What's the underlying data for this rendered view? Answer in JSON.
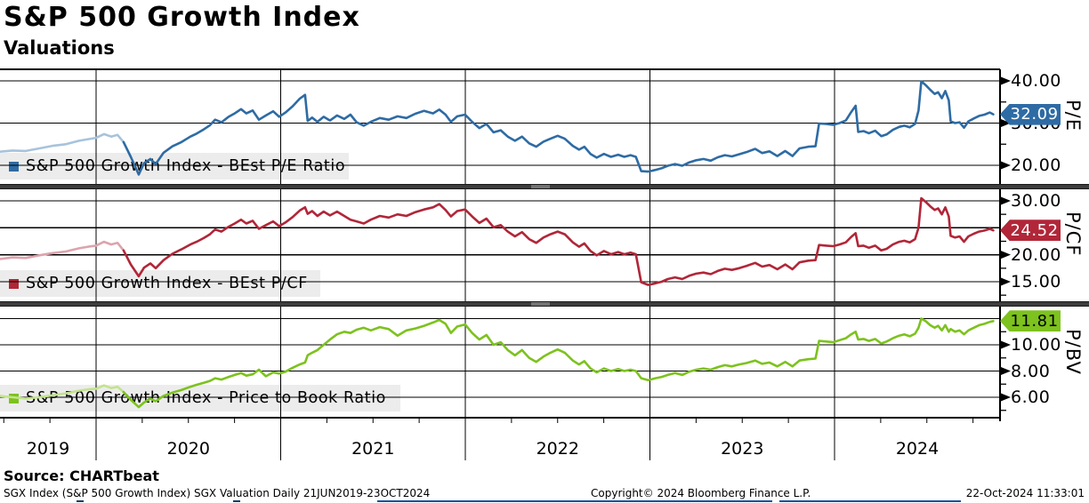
{
  "header": {
    "title": "S&P 500 Growth Index",
    "subtitle": "Valuations"
  },
  "footer": {
    "source": "Source: CHARTbeat",
    "meta_left": "SGX Index (S&P 500 Growth Index) SGX Valuation  Daily 21JUN2019-23OCT2024",
    "copyright": "Copyright© 2024 Bloomberg Finance L.P.",
    "timestamp": "22-Oct-2024 11:33:01"
  },
  "chart_data": {
    "type": "line",
    "title": "S&P 500 Growth Index",
    "subtitle": "Valuations",
    "x_axis": {
      "year_labels": [
        "2019",
        "2020",
        "2021",
        "2022",
        "2023",
        "2024"
      ],
      "range": [
        2019.47,
        2024.86
      ],
      "grid": true
    },
    "t": [
      2019.475,
      2019.547,
      2019.619,
      2019.692,
      2019.764,
      2019.836,
      2019.908,
      2019.957,
      2020.0,
      2020.043,
      2020.082,
      2020.116,
      2020.149,
      2020.188,
      2020.231,
      2020.26,
      2020.294,
      2020.323,
      2020.366,
      2020.414,
      2020.462,
      2020.511,
      2020.544,
      2020.583,
      2020.617,
      2020.645,
      2020.679,
      2020.718,
      2020.751,
      2020.785,
      2020.814,
      2020.848,
      2020.882,
      2020.92,
      2020.959,
      2020.992,
      2021.026,
      2021.065,
      2021.103,
      2021.132,
      2021.146,
      2021.17,
      2021.199,
      2021.233,
      2021.267,
      2021.305,
      2021.344,
      2021.378,
      2021.411,
      2021.45,
      2021.488,
      2021.537,
      2021.585,
      2021.633,
      2021.681,
      2021.729,
      2021.777,
      2021.825,
      2021.859,
      2021.893,
      2021.922,
      2021.956,
      2021.999,
      2022.037,
      2022.076,
      2022.114,
      2022.153,
      2022.192,
      2022.23,
      2022.269,
      2022.307,
      2022.346,
      2022.384,
      2022.423,
      2022.461,
      2022.5,
      2022.539,
      2022.582,
      2022.616,
      2022.645,
      2022.678,
      2022.712,
      2022.751,
      2022.789,
      2022.828,
      2022.861,
      2022.895,
      2022.924,
      2022.953,
      2022.991,
      2023.03,
      2023.064,
      2023.097,
      2023.136,
      2023.175,
      2023.213,
      2023.251,
      2023.29,
      2023.329,
      2023.367,
      2023.406,
      2023.444,
      2023.483,
      2023.521,
      2023.57,
      2023.608,
      2023.647,
      2023.69,
      2023.733,
      2023.772,
      2023.81,
      2023.858,
      2023.897,
      2023.916,
      2023.955,
      2023.993,
      2024.027,
      2024.061,
      2024.09,
      2024.114,
      2024.128,
      2024.157,
      2024.186,
      2024.22,
      2024.253,
      2024.282,
      2024.316,
      2024.35,
      2024.378,
      2024.407,
      2024.436,
      2024.455,
      2024.47,
      2024.494,
      2024.518,
      2024.542,
      2024.561,
      2024.581,
      2024.6,
      2024.619,
      2024.629,
      2024.653,
      2024.677,
      2024.701,
      2024.725,
      2024.754,
      2024.783,
      2024.812,
      2024.841,
      2024.86
    ],
    "fade_before_t": 2020.116,
    "panels": [
      {
        "id": "pe",
        "legend": "S&P 500 Growth Index - BEst P/E Ratio",
        "axis_title": "P/E",
        "last_value": "32.09",
        "color": "#2e6ba4",
        "light_color": "#a7c3dc",
        "badge_text_color": "#ffffff",
        "gridlines": [
          40,
          30,
          20
        ],
        "ticks": [
          [
            40,
            "40.00"
          ],
          [
            30,
            "30.00"
          ],
          [
            20,
            "20.00"
          ]
        ],
        "minor_ticks": [
          35,
          25
        ],
        "values": [
          23.2,
          23.5,
          23.4,
          24.0,
          24.6,
          25.0,
          25.8,
          26.2,
          26.5,
          27.4,
          26.8,
          27.2,
          25.5,
          22.0,
          17.8,
          20.5,
          21.5,
          20.3,
          23.0,
          24.5,
          25.5,
          26.8,
          27.5,
          28.5,
          29.5,
          30.8,
          30.2,
          31.5,
          32.3,
          33.3,
          32.3,
          33.0,
          30.8,
          31.8,
          32.8,
          31.5,
          32.5,
          34.0,
          35.8,
          36.7,
          30.5,
          31.3,
          30.3,
          31.5,
          30.6,
          31.8,
          31.0,
          32.0,
          30.2,
          29.4,
          30.3,
          31.2,
          30.8,
          31.6,
          31.2,
          32.2,
          32.9,
          32.3,
          33.2,
          32.0,
          30.3,
          31.6,
          32.0,
          30.3,
          28.8,
          29.8,
          27.8,
          28.3,
          26.8,
          25.8,
          26.8,
          25.2,
          24.4,
          25.6,
          26.3,
          27.0,
          26.3,
          24.6,
          23.7,
          24.4,
          22.7,
          21.8,
          22.7,
          22.0,
          22.5,
          22.0,
          22.4,
          22.0,
          18.6,
          18.5,
          18.9,
          19.3,
          19.9,
          20.3,
          19.9,
          20.7,
          21.2,
          21.5,
          21.1,
          21.9,
          22.4,
          22.1,
          22.6,
          23.1,
          23.9,
          22.9,
          23.3,
          22.2,
          23.4,
          22.2,
          24.0,
          24.4,
          24.5,
          29.9,
          29.8,
          29.6,
          30.0,
          30.6,
          32.6,
          34.1,
          27.9,
          28.1,
          27.6,
          28.2,
          26.9,
          27.3,
          28.4,
          29.1,
          29.4,
          29.0,
          29.8,
          33.0,
          39.9,
          39.0,
          37.9,
          36.9,
          37.3,
          35.9,
          37.6,
          35.4,
          30.4,
          30.0,
          30.2,
          28.9,
          30.4,
          31.1,
          31.7,
          32.0,
          32.5,
          32.09
        ]
      },
      {
        "id": "pcf",
        "legend": "S&P 500 Growth Index - BEst P/CF",
        "axis_title": "P/CF",
        "last_value": "24.52",
        "color": "#b12638",
        "light_color": "#dda3ac",
        "badge_text_color": "#ffffff",
        "gridlines": [
          30,
          25,
          20,
          15
        ],
        "ticks": [
          [
            30,
            "30.00"
          ],
          [
            20,
            "20.00"
          ],
          [
            15,
            "15.00"
          ]
        ],
        "minor_ticks": [
          27.5,
          22.5,
          17.5,
          12.5
        ],
        "values": [
          19.2,
          19.5,
          19.4,
          19.9,
          20.3,
          20.6,
          21.2,
          21.5,
          21.7,
          22.4,
          21.9,
          22.2,
          20.8,
          18.2,
          16.0,
          17.6,
          18.4,
          17.5,
          19.0,
          20.2,
          21.0,
          21.9,
          22.4,
          23.1,
          23.8,
          24.7,
          24.3,
          25.2,
          25.8,
          26.5,
          25.8,
          26.3,
          24.8,
          25.5,
          26.2,
          25.3,
          26.0,
          27.0,
          28.2,
          28.8,
          27.6,
          28.1,
          27.2,
          28.0,
          27.3,
          28.0,
          27.2,
          26.5,
          26.2,
          25.8,
          26.5,
          27.2,
          26.9,
          27.5,
          27.2,
          27.9,
          28.4,
          28.8,
          29.4,
          28.3,
          27.1,
          28.1,
          28.4,
          27.1,
          25.9,
          26.7,
          25.1,
          25.5,
          24.3,
          23.4,
          24.2,
          22.9,
          22.2,
          23.2,
          23.8,
          24.3,
          23.8,
          22.3,
          21.5,
          22.1,
          20.7,
          19.9,
          20.7,
          20.1,
          20.5,
          20.1,
          20.4,
          20.1,
          14.9,
          14.4,
          14.7,
          15.0,
          15.5,
          15.8,
          15.5,
          16.1,
          16.5,
          16.7,
          16.4,
          17.0,
          17.4,
          17.2,
          17.5,
          17.9,
          18.5,
          17.8,
          18.1,
          17.3,
          18.2,
          17.3,
          18.6,
          18.9,
          19.0,
          21.8,
          21.7,
          21.6,
          21.9,
          22.3,
          23.3,
          24.0,
          21.6,
          21.7,
          21.3,
          21.7,
          20.8,
          21.1,
          21.9,
          22.4,
          22.6,
          22.3,
          22.9,
          25.0,
          30.5,
          29.8,
          29.0,
          28.3,
          28.6,
          27.5,
          28.8,
          27.1,
          23.5,
          23.2,
          23.4,
          22.4,
          23.4,
          23.9,
          24.3,
          24.5,
          24.8,
          24.52
        ]
      },
      {
        "id": "pbv",
        "legend": "S&P 500 Growth Index - Price to Book Ratio",
        "axis_title": "P/BV",
        "last_value": "11.81",
        "color": "#7dc21e",
        "light_color": "#c3e38c",
        "badge_text_color": "#000000",
        "gridlines": [
          12,
          10,
          8,
          6
        ],
        "ticks": [
          [
            10,
            "10.00"
          ],
          [
            8,
            "8.00"
          ],
          [
            6,
            "6.00"
          ]
        ],
        "minor_ticks": [
          11,
          9,
          7,
          5
        ],
        "values": [
          6.1,
          6.0,
          5.9,
          6.0,
          6.15,
          6.3,
          6.5,
          6.6,
          6.65,
          6.9,
          6.7,
          6.8,
          6.4,
          5.8,
          5.25,
          5.6,
          5.9,
          5.7,
          6.1,
          6.35,
          6.55,
          6.8,
          6.95,
          7.1,
          7.25,
          7.45,
          7.35,
          7.55,
          7.7,
          7.85,
          7.65,
          7.75,
          8.1,
          7.6,
          7.9,
          7.8,
          7.95,
          8.25,
          8.5,
          8.65,
          9.2,
          9.4,
          9.6,
          10.0,
          10.4,
          10.8,
          11.0,
          10.9,
          11.15,
          11.3,
          11.1,
          11.35,
          11.2,
          10.7,
          11.1,
          11.25,
          11.45,
          11.7,
          11.9,
          11.6,
          10.9,
          11.4,
          11.55,
          10.9,
          10.4,
          10.75,
          10.0,
          10.2,
          9.6,
          9.2,
          9.6,
          9.0,
          8.7,
          9.1,
          9.4,
          9.65,
          9.4,
          8.8,
          8.5,
          8.75,
          8.2,
          7.9,
          8.2,
          8.0,
          8.15,
          8.0,
          8.1,
          8.0,
          7.45,
          7.3,
          7.45,
          7.55,
          7.7,
          7.85,
          7.7,
          7.95,
          8.1,
          8.2,
          8.1,
          8.3,
          8.45,
          8.35,
          8.5,
          8.6,
          8.8,
          8.55,
          8.65,
          8.35,
          8.7,
          8.35,
          8.8,
          8.9,
          8.95,
          10.3,
          10.25,
          10.2,
          10.35,
          10.5,
          10.8,
          11.0,
          10.4,
          10.45,
          10.3,
          10.45,
          10.1,
          10.25,
          10.5,
          10.7,
          10.8,
          10.65,
          10.85,
          11.3,
          12.0,
          11.8,
          11.5,
          11.3,
          11.45,
          11.1,
          11.5,
          11.0,
          11.2,
          11.0,
          11.1,
          10.8,
          11.1,
          11.3,
          11.5,
          11.6,
          11.75,
          11.81
        ]
      }
    ]
  }
}
